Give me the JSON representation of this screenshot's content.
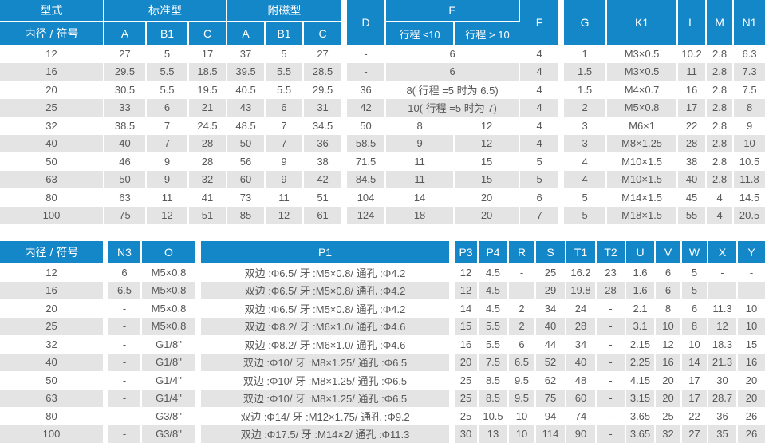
{
  "colors": {
    "header_bg": "#1487c9",
    "row_alt_bg": "#e4e4e4",
    "text": "#58585a"
  },
  "table1": {
    "header": {
      "type_label": "型式",
      "bore_label": "内径 / 符号",
      "standard_group": "标准型",
      "magnetic_group": "附磁型",
      "std_a": "A",
      "std_b1": "B1",
      "std_c": "C",
      "mag_a": "A",
      "mag_b1": "B1",
      "mag_c": "C",
      "d": "D",
      "e": "E",
      "e_stroke_le_10": "行程 ≤10",
      "e_stroke_gt_10": "行程 > 10",
      "f": "F",
      "g": "G",
      "k1": "K1",
      "l": "L",
      "m": "M",
      "n1": "N1"
    },
    "rows": [
      {
        "bore": "12",
        "std_a": "27",
        "std_b1": "5",
        "std_c": "17",
        "mag_a": "37",
        "mag_b1": "5",
        "mag_c": "27",
        "d": "-",
        "e_merged": "6",
        "f": "4",
        "g": "1",
        "k1": "M3×0.5",
        "l": "10.2",
        "m": "2.8",
        "n1": "6.3"
      },
      {
        "bore": "16",
        "std_a": "29.5",
        "std_b1": "5.5",
        "std_c": "18.5",
        "mag_a": "39.5",
        "mag_b1": "5.5",
        "mag_c": "28.5",
        "d": "-",
        "e_merged": "6",
        "f": "4",
        "g": "1.5",
        "k1": "M3×0.5",
        "l": "11",
        "m": "2.8",
        "n1": "7.3"
      },
      {
        "bore": "20",
        "std_a": "30.5",
        "std_b1": "5.5",
        "std_c": "19.5",
        "mag_a": "40.5",
        "mag_b1": "5.5",
        "mag_c": "29.5",
        "d": "36",
        "e_merged": "8( 行程 =5 时为 6.5)",
        "f": "4",
        "g": "1.5",
        "k1": "M4×0.7",
        "l": "16",
        "m": "2.8",
        "n1": "7.5"
      },
      {
        "bore": "25",
        "std_a": "33",
        "std_b1": "6",
        "std_c": "21",
        "mag_a": "43",
        "mag_b1": "6",
        "mag_c": "31",
        "d": "42",
        "e_merged": "10( 行程 =5 时为 7)",
        "f": "4",
        "g": "2",
        "k1": "M5×0.8",
        "l": "17",
        "m": "2.8",
        "n1": "8"
      },
      {
        "bore": "32",
        "std_a": "38.5",
        "std_b1": "7",
        "std_c": "24.5",
        "mag_a": "48.5",
        "mag_b1": "7",
        "mag_c": "34.5",
        "d": "50",
        "e1": "8",
        "e2": "12",
        "f": "4",
        "g": "3",
        "k1": "M6×1",
        "l": "22",
        "m": "2.8",
        "n1": "9"
      },
      {
        "bore": "40",
        "std_a": "40",
        "std_b1": "7",
        "std_c": "28",
        "mag_a": "50",
        "mag_b1": "7",
        "mag_c": "36",
        "d": "58.5",
        "e1": "9",
        "e2": "12",
        "f": "4",
        "g": "3",
        "k1": "M8×1.25",
        "l": "28",
        "m": "2.8",
        "n1": "10"
      },
      {
        "bore": "50",
        "std_a": "46",
        "std_b1": "9",
        "std_c": "28",
        "mag_a": "56",
        "mag_b1": "9",
        "mag_c": "38",
        "d": "71.5",
        "e1": "11",
        "e2": "15",
        "f": "5",
        "g": "4",
        "k1": "M10×1.5",
        "l": "38",
        "m": "2.8",
        "n1": "10.5"
      },
      {
        "bore": "63",
        "std_a": "50",
        "std_b1": "9",
        "std_c": "32",
        "mag_a": "60",
        "mag_b1": "9",
        "mag_c": "42",
        "d": "84.5",
        "e1": "11",
        "e2": "15",
        "f": "5",
        "g": "4",
        "k1": "M10×1.5",
        "l": "40",
        "m": "2.8",
        "n1": "11.8"
      },
      {
        "bore": "80",
        "std_a": "63",
        "std_b1": "11",
        "std_c": "41",
        "mag_a": "73",
        "mag_b1": "11",
        "mag_c": "51",
        "d": "104",
        "e1": "14",
        "e2": "20",
        "f": "6",
        "g": "5",
        "k1": "M14×1.5",
        "l": "45",
        "m": "4",
        "n1": "14.5"
      },
      {
        "bore": "100",
        "std_a": "75",
        "std_b1": "12",
        "std_c": "51",
        "mag_a": "85",
        "mag_b1": "12",
        "mag_c": "61",
        "d": "124",
        "e1": "18",
        "e2": "20",
        "f": "7",
        "g": "5",
        "k1": "M18×1.5",
        "l": "55",
        "m": "4",
        "n1": "20.5"
      }
    ]
  },
  "table2": {
    "header": {
      "bore_label": "内径 / 符号",
      "n3": "N3",
      "o": "O",
      "p1": "P1",
      "p3": "P3",
      "p4": "P4",
      "r": "R",
      "s": "S",
      "t1": "T1",
      "t2": "T2",
      "u": "U",
      "v": "V",
      "w": "W",
      "x": "X",
      "y": "Y"
    },
    "rows": [
      {
        "bore": "12",
        "n3": "6",
        "o": "M5×0.8",
        "p1": "双边 :Φ6.5/ 牙 :M5×0.8/ 通孔 :Φ4.2",
        "p3": "12",
        "p4": "4.5",
        "r": "-",
        "s": "25",
        "t1": "16.2",
        "t2": "23",
        "u": "1.6",
        "v": "6",
        "w": "5",
        "x": "-",
        "y": "-"
      },
      {
        "bore": "16",
        "n3": "6.5",
        "o": "M5×0.8",
        "p1": "双边 :Φ6.5/ 牙 :M5×0.8/ 通孔 :Φ4.2",
        "p3": "12",
        "p4": "4.5",
        "r": "-",
        "s": "29",
        "t1": "19.8",
        "t2": "28",
        "u": "1.6",
        "v": "6",
        "w": "5",
        "x": "-",
        "y": "-"
      },
      {
        "bore": "20",
        "n3": "-",
        "o": "M5×0.8",
        "p1": "双边 :Φ6.5/ 牙 :M5×0.8/ 通孔 :Φ4.2",
        "p3": "14",
        "p4": "4.5",
        "r": "2",
        "s": "34",
        "t1": "24",
        "t2": "-",
        "u": "2.1",
        "v": "8",
        "w": "6",
        "x": "11.3",
        "y": "10"
      },
      {
        "bore": "25",
        "n3": "-",
        "o": "M5×0.8",
        "p1": "双边 :Φ8.2/ 牙 :M6×1.0/ 通孔 :Φ4.6",
        "p3": "15",
        "p4": "5.5",
        "r": "2",
        "s": "40",
        "t1": "28",
        "t2": "-",
        "u": "3.1",
        "v": "10",
        "w": "8",
        "x": "12",
        "y": "10"
      },
      {
        "bore": "32",
        "n3": "-",
        "o": "G1/8\"",
        "p1": "双边 :Φ8.2/ 牙 :M6×1.0/ 通孔 :Φ4.6",
        "p3": "16",
        "p4": "5.5",
        "r": "6",
        "s": "44",
        "t1": "34",
        "t2": "-",
        "u": "2.15",
        "v": "12",
        "w": "10",
        "x": "18.3",
        "y": "15"
      },
      {
        "bore": "40",
        "n3": "-",
        "o": "G1/8\"",
        "p1": "双边 :Φ10/ 牙 :M8×1.25/ 通孔 :Φ6.5",
        "p3": "20",
        "p4": "7.5",
        "r": "6.5",
        "s": "52",
        "t1": "40",
        "t2": "-",
        "u": "2.25",
        "v": "16",
        "w": "14",
        "x": "21.3",
        "y": "16"
      },
      {
        "bore": "50",
        "n3": "-",
        "o": "G1/4\"",
        "p1": "双边 :Φ10/ 牙 :M8×1.25/ 通孔 :Φ6.5",
        "p3": "25",
        "p4": "8.5",
        "r": "9.5",
        "s": "62",
        "t1": "48",
        "t2": "-",
        "u": "4.15",
        "v": "20",
        "w": "17",
        "x": "30",
        "y": "20"
      },
      {
        "bore": "63",
        "n3": "-",
        "o": "G1/4\"",
        "p1": "双边 :Φ10/ 牙 :M8×1.25/ 通孔 :Φ6.5",
        "p3": "25",
        "p4": "8.5",
        "r": "9.5",
        "s": "75",
        "t1": "60",
        "t2": "-",
        "u": "3.15",
        "v": "20",
        "w": "17",
        "x": "28.7",
        "y": "20"
      },
      {
        "bore": "80",
        "n3": "-",
        "o": "G3/8\"",
        "p1": "双边 :Φ14/ 牙 :M12×1.75/ 通孔 :Φ9.2",
        "p3": "25",
        "p4": "10.5",
        "r": "10",
        "s": "94",
        "t1": "74",
        "t2": "-",
        "u": "3.65",
        "v": "25",
        "w": "22",
        "x": "36",
        "y": "26"
      },
      {
        "bore": "100",
        "n3": "-",
        "o": "G3/8\"",
        "p1": "双边 :Φ17.5/ 牙 :M14×2/ 通孔 :Φ11.3",
        "p3": "30",
        "p4": "13",
        "r": "10",
        "s": "114",
        "t1": "90",
        "t2": "-",
        "u": "3.65",
        "v": "32",
        "w": "27",
        "x": "35",
        "y": "26"
      }
    ]
  }
}
